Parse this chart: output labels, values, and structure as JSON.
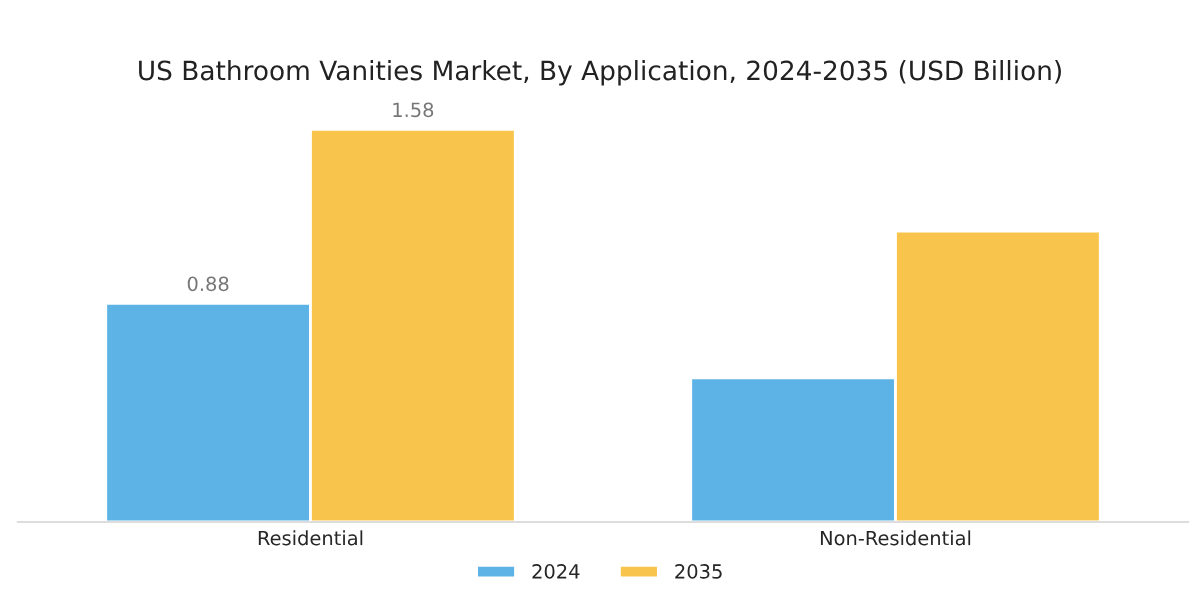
{
  "chart_data": {
    "type": "bar",
    "title": "US Bathroom Vanities Market, By Application, 2024-2035 (USD Billion)",
    "categories": [
      "Residential",
      "Non-Residential"
    ],
    "series": [
      {
        "name": "2024",
        "color": "#5db3e6",
        "values": [
          0.88,
          0.58
        ],
        "value_labels": [
          "0.88",
          null
        ]
      },
      {
        "name": "2035",
        "color": "#f8c44b",
        "values": [
          1.58,
          1.17
        ],
        "value_labels": [
          "1.58",
          null
        ]
      }
    ],
    "legend": "bottom",
    "grid": false
  }
}
